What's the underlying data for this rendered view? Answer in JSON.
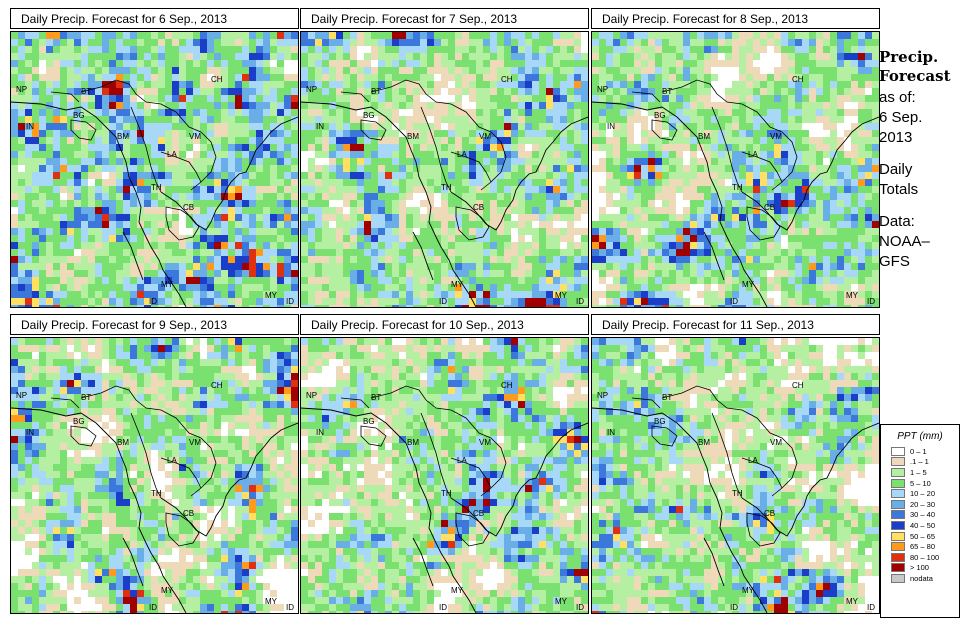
{
  "panels": [
    {
      "title": "Daily Precip. Forecast for  6 Sep., 2013",
      "seed": 11,
      "wet": 0.75
    },
    {
      "title": "Daily Precip. Forecast for  7 Sep., 2013",
      "seed": 23,
      "wet": 0.6
    },
    {
      "title": "Daily Precip. Forecast for  8 Sep., 2013",
      "seed": 37,
      "wet": 0.5
    },
    {
      "title": "Daily Precip. Forecast for  9 Sep., 2013",
      "seed": 41,
      "wet": 0.45
    },
    {
      "title": "Daily Precip. Forecast for  10 Sep., 2013",
      "seed": 53,
      "wet": 0.5
    },
    {
      "title": "Daily Precip. Forecast for  11 Sep., 2013",
      "seed": 67,
      "wet": 0.5
    }
  ],
  "map_labels": [
    "CH",
    "NP",
    "BT",
    "BG",
    "IN",
    "BM",
    "VM",
    "LA",
    "TH",
    "CB",
    "MY",
    "MY",
    "ID",
    "ID"
  ],
  "sidebar": {
    "heading_line1": "Precip.",
    "heading_line2": "Forecast",
    "asof": "as of:",
    "date_line1": "6 Sep.",
    "date_line2": "2013",
    "daily_line1": "Daily",
    "daily_line2": "Totals",
    "data_line1": "Data:",
    "data_line2": "NOAA–",
    "data_line3": "GFS"
  },
  "legend": {
    "title": "PPT (mm)",
    "classes": [
      {
        "label": "0 – 1",
        "color": "#ffffff"
      },
      {
        "label": ".1 – 1",
        "color": "#eed9b8"
      },
      {
        "label": "1 – 5",
        "color": "#b5f0a2"
      },
      {
        "label": "5 – 10",
        "color": "#7ae070"
      },
      {
        "label": "10 – 20",
        "color": "#a8d8f8"
      },
      {
        "label": "20 – 30",
        "color": "#6aaee8"
      },
      {
        "label": "30 – 40",
        "color": "#3c78dc"
      },
      {
        "label": "40 – 50",
        "color": "#1a3ec8"
      },
      {
        "label": "50 – 65",
        "color": "#ffe060"
      },
      {
        "label": "65 – 80",
        "color": "#ff9a1a"
      },
      {
        "label": "80 – 100",
        "color": "#e03010"
      },
      {
        "label": "> 100",
        "color": "#a00000"
      },
      {
        "label": "nodata",
        "color": "#c8c8c8"
      }
    ]
  }
}
